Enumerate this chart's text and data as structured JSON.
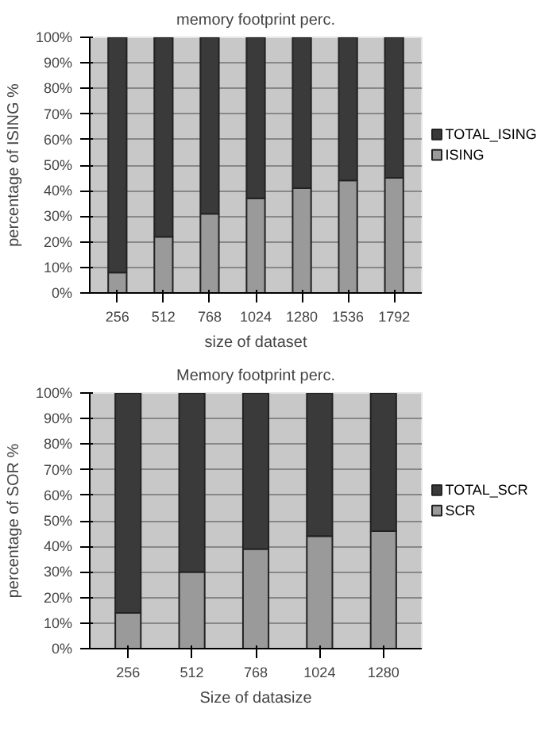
{
  "chart_data": [
    {
      "type": "bar",
      "stacked": true,
      "title": "memory footprint perc.",
      "xlabel": "size of dataset",
      "ylabel": "percentage of ISING %",
      "categories": [
        "256",
        "512",
        "768",
        "1024",
        "1280",
        "1536",
        "1792"
      ],
      "series": [
        {
          "name": "ISING",
          "color": "#9a9a9a",
          "values": [
            8,
            22,
            31,
            37,
            41,
            44,
            45
          ]
        },
        {
          "name": "TOTAL_ISING",
          "color": "#3a3a3a",
          "values": [
            92,
            78,
            69,
            63,
            59,
            56,
            55
          ]
        }
      ],
      "ylim": [
        0,
        100
      ],
      "yticks": [
        {
          "value": 0,
          "label": "0%"
        },
        {
          "value": 10,
          "label": "10%"
        },
        {
          "value": 20,
          "label": "20%"
        },
        {
          "value": 30,
          "label": "30%"
        },
        {
          "value": 40,
          "label": "40%"
        },
        {
          "value": 50,
          "label": "50%"
        },
        {
          "value": 60,
          "label": "60%"
        },
        {
          "value": 70,
          "label": "70%"
        },
        {
          "value": 80,
          "label": "80%"
        },
        {
          "value": 90,
          "label": "90%"
        },
        {
          "value": 100,
          "label": "100%"
        }
      ],
      "grid": "y",
      "legend": "right"
    },
    {
      "type": "bar",
      "stacked": true,
      "title": "Memory footprint perc.",
      "xlabel": "Size of datasize",
      "ylabel": "percentage of SOR %",
      "categories": [
        "256",
        "512",
        "768",
        "1024",
        "1280"
      ],
      "series": [
        {
          "name": "SCR",
          "color": "#9a9a9a",
          "values": [
            14,
            30,
            39,
            44,
            46
          ]
        },
        {
          "name": "TOTAL_SCR",
          "color": "#3a3a3a",
          "values": [
            86,
            70,
            61,
            56,
            54
          ]
        }
      ],
      "ylim": [
        0,
        100
      ],
      "yticks": [
        {
          "value": 0,
          "label": "0%"
        },
        {
          "value": 10,
          "label": "10%"
        },
        {
          "value": 20,
          "label": "20%"
        },
        {
          "value": 30,
          "label": "30%"
        },
        {
          "value": 40,
          "label": "40%"
        },
        {
          "value": 50,
          "label": "50%"
        },
        {
          "value": 60,
          "label": "60%"
        },
        {
          "value": 70,
          "label": "70%"
        },
        {
          "value": 80,
          "label": "80%"
        },
        {
          "value": 90,
          "label": "90%"
        },
        {
          "value": 100,
          "label": "100%"
        }
      ],
      "grid": "y",
      "legend": "right"
    }
  ]
}
